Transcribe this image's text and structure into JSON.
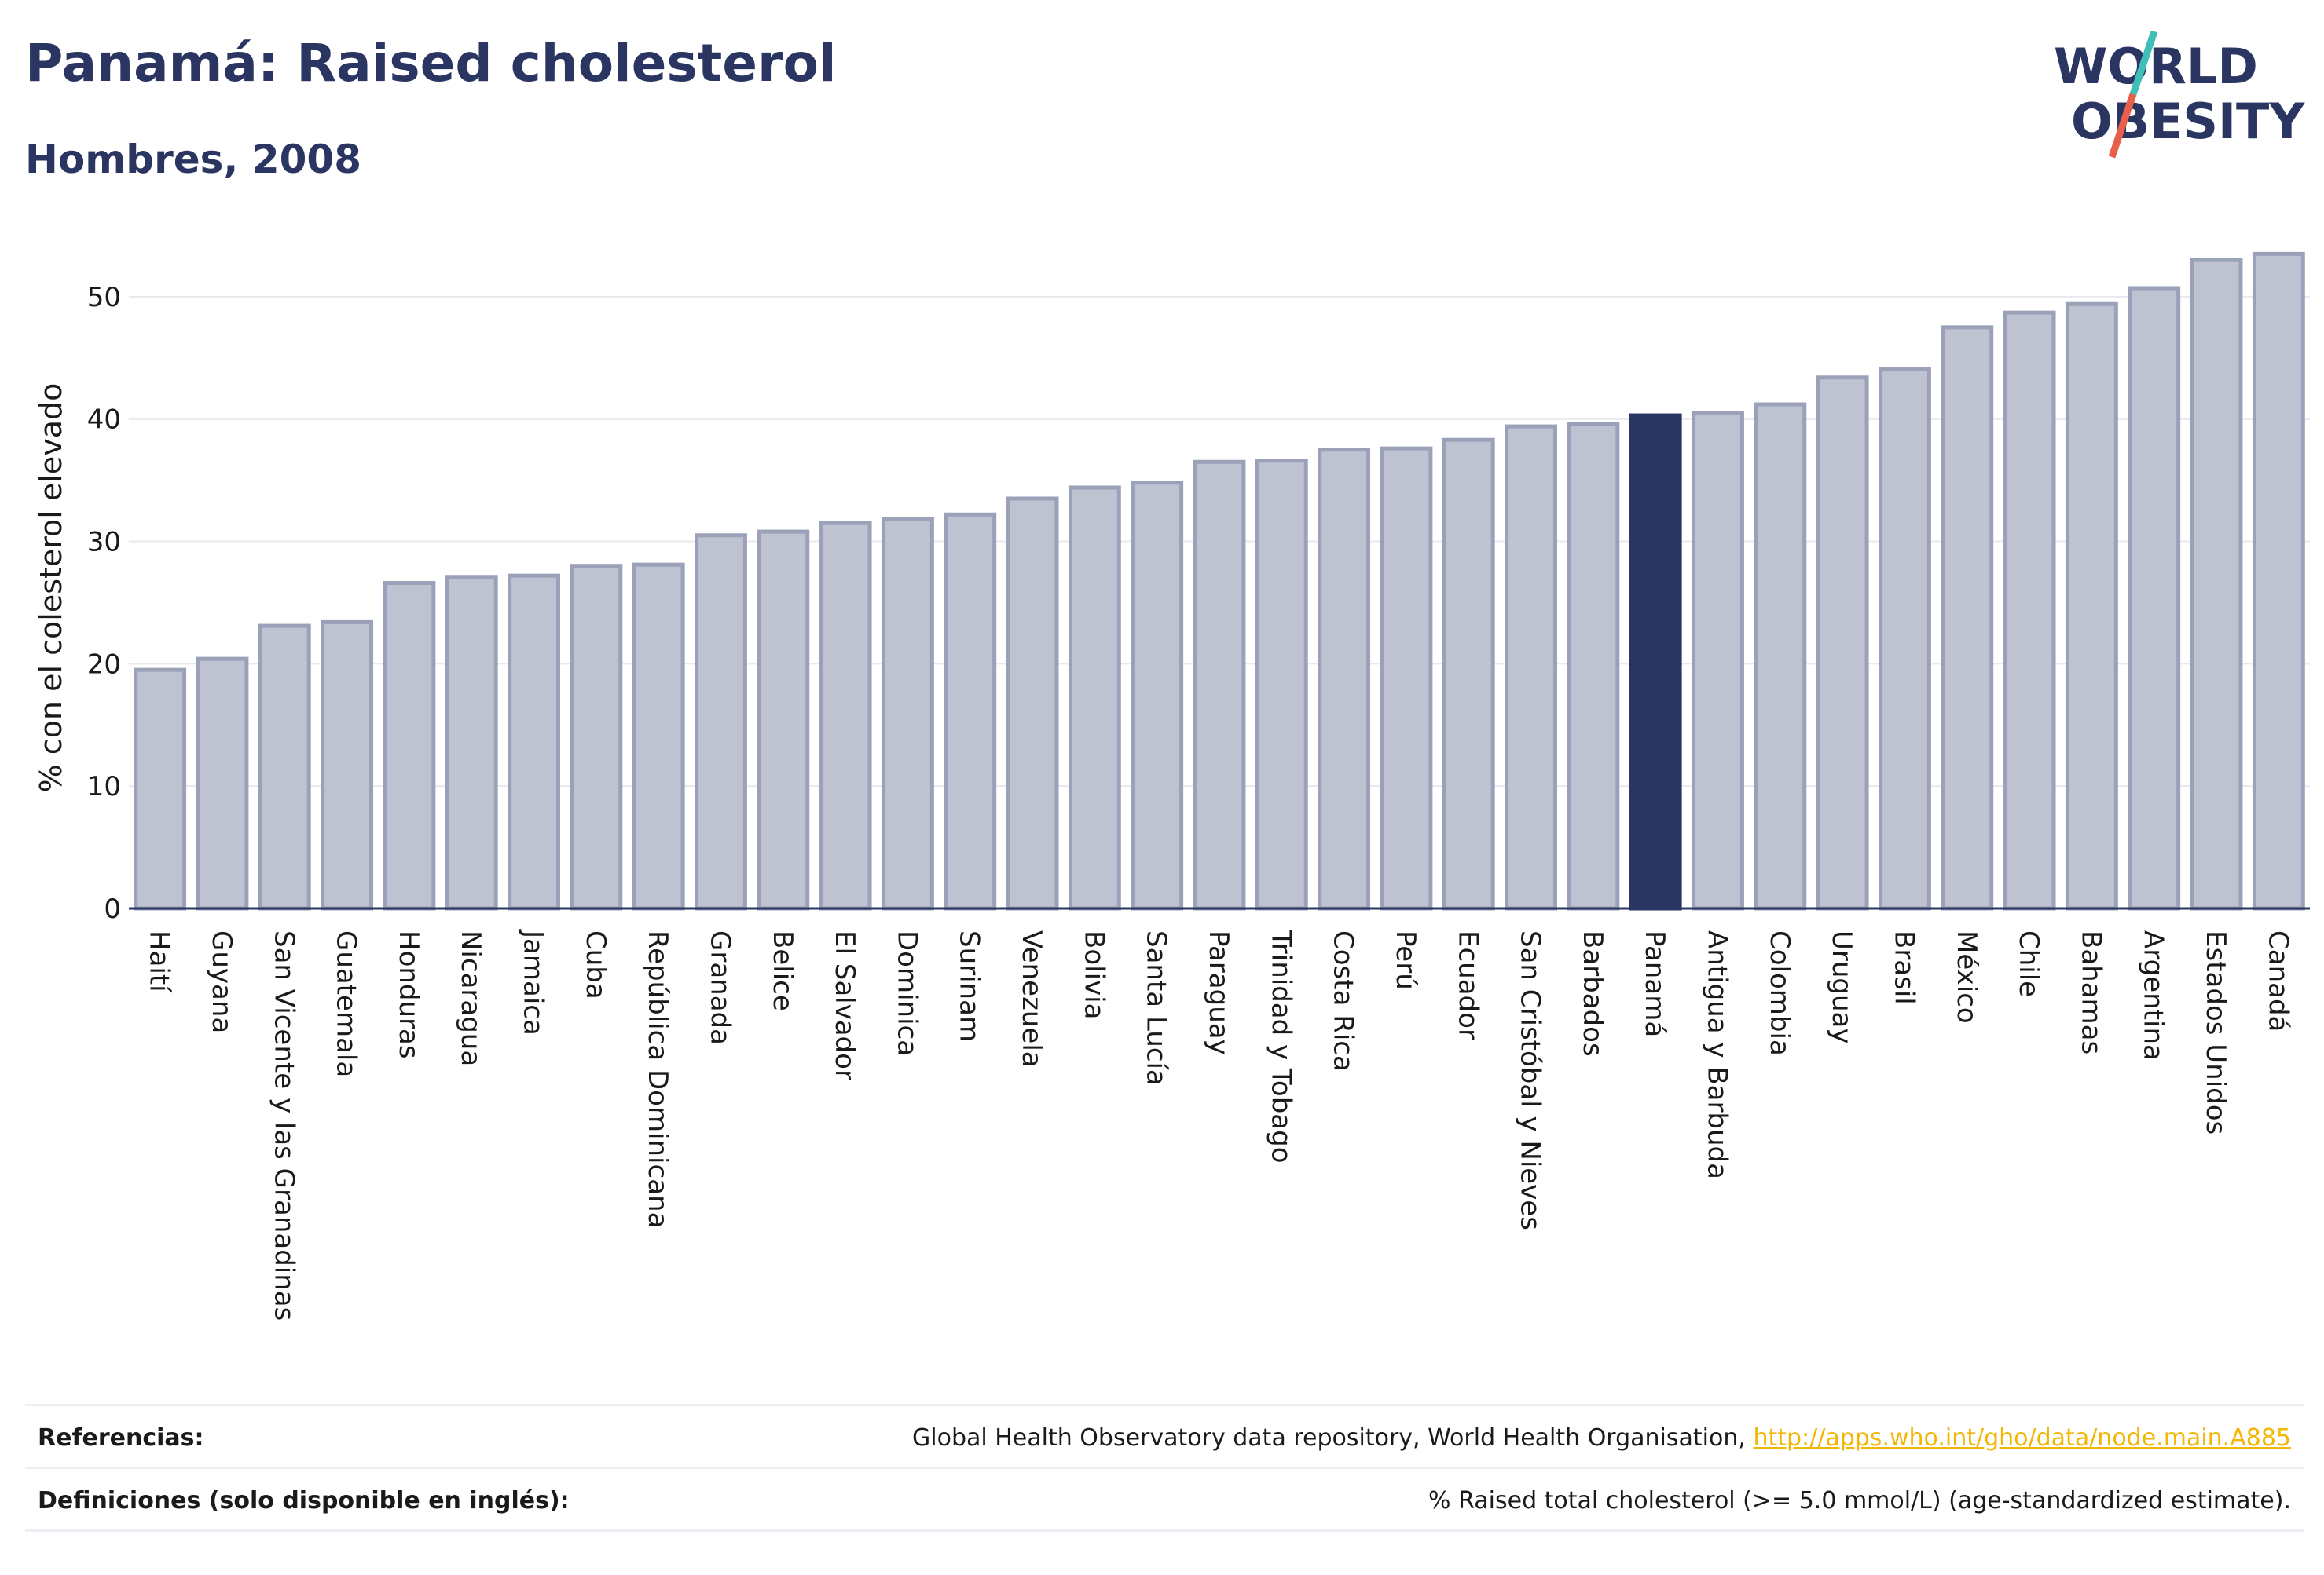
{
  "header": {
    "title": "Panamá: Raised cholesterol",
    "subtitle": "Hombres, 2008"
  },
  "logo": {
    "line1": "WORLD",
    "line2": "OBESITY",
    "icon": "world-obesity-logo"
  },
  "colors": {
    "bar_default": "#bfc3d1",
    "bar_border": "#9aa1b8",
    "bar_highlight": "#2a3561",
    "title": "#2a3561",
    "grid": "#e8e9ee",
    "link": "#f2b705",
    "logo_slash_teal": "#3fbfb8",
    "logo_slash_red": "#e8604c"
  },
  "chart_data": {
    "type": "bar",
    "ylabel": "% con el colesterol elevado",
    "xlabel": "",
    "ylim": [
      0,
      55
    ],
    "yticks": [
      0,
      10,
      20,
      30,
      40,
      50
    ],
    "grid": true,
    "highlight": "Panamá",
    "categories": [
      "Haití",
      "Guyana",
      "San Vicente y las Granadinas",
      "Guatemala",
      "Honduras",
      "Nicaragua",
      "Jamaica",
      "Cuba",
      "República Dominicana",
      "Granada",
      "Belice",
      "El Salvador",
      "Dominica",
      "Surinam",
      "Venezuela",
      "Bolivia",
      "Santa Lucía",
      "Paraguay",
      "Trinidad y Tobago",
      "Costa Rica",
      "Perú",
      "Ecuador",
      "San Cristóbal y Nieves",
      "Barbados",
      "Panamá",
      "Antigua y Barbuda",
      "Colombia",
      "Uruguay",
      "Brasil",
      "México",
      "Chile",
      "Bahamas",
      "Argentina",
      "Estados Unidos",
      "Canadá"
    ],
    "values": [
      19.5,
      20.4,
      23.1,
      23.4,
      26.6,
      27.1,
      27.2,
      28.0,
      28.1,
      30.5,
      30.8,
      31.5,
      31.8,
      32.2,
      33.5,
      34.4,
      34.8,
      36.5,
      36.6,
      37.5,
      37.6,
      38.3,
      39.4,
      39.6,
      40.3,
      40.5,
      41.2,
      43.4,
      44.1,
      47.5,
      48.7,
      49.4,
      50.7,
      53.0,
      53.5
    ]
  },
  "footer": {
    "references_label": "Referencias:",
    "references_text": "Global Health Observatory data repository, World Health Organisation, ",
    "references_link": "http://apps.who.int/gho/data/node.main.A885",
    "definitions_label": "Definiciones (solo disponible en inglés):",
    "definitions_text": "% Raised total cholesterol (>= 5.0 mmol/L) (age-standardized estimate)."
  }
}
